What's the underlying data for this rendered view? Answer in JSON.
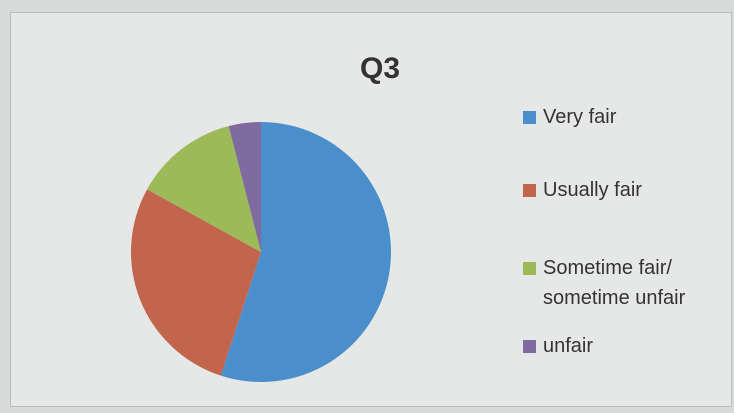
{
  "chart_data": {
    "type": "pie",
    "title": "Q3",
    "categories": [
      "Very fair",
      "Usually fair",
      "Sometime fair/ sometime unfair",
      "unfair"
    ],
    "values": [
      55,
      28,
      13,
      4
    ],
    "colors": [
      "#4a8fcb",
      "#c3654d",
      "#9cba58",
      "#7f6ba0"
    ],
    "legend": "right"
  }
}
